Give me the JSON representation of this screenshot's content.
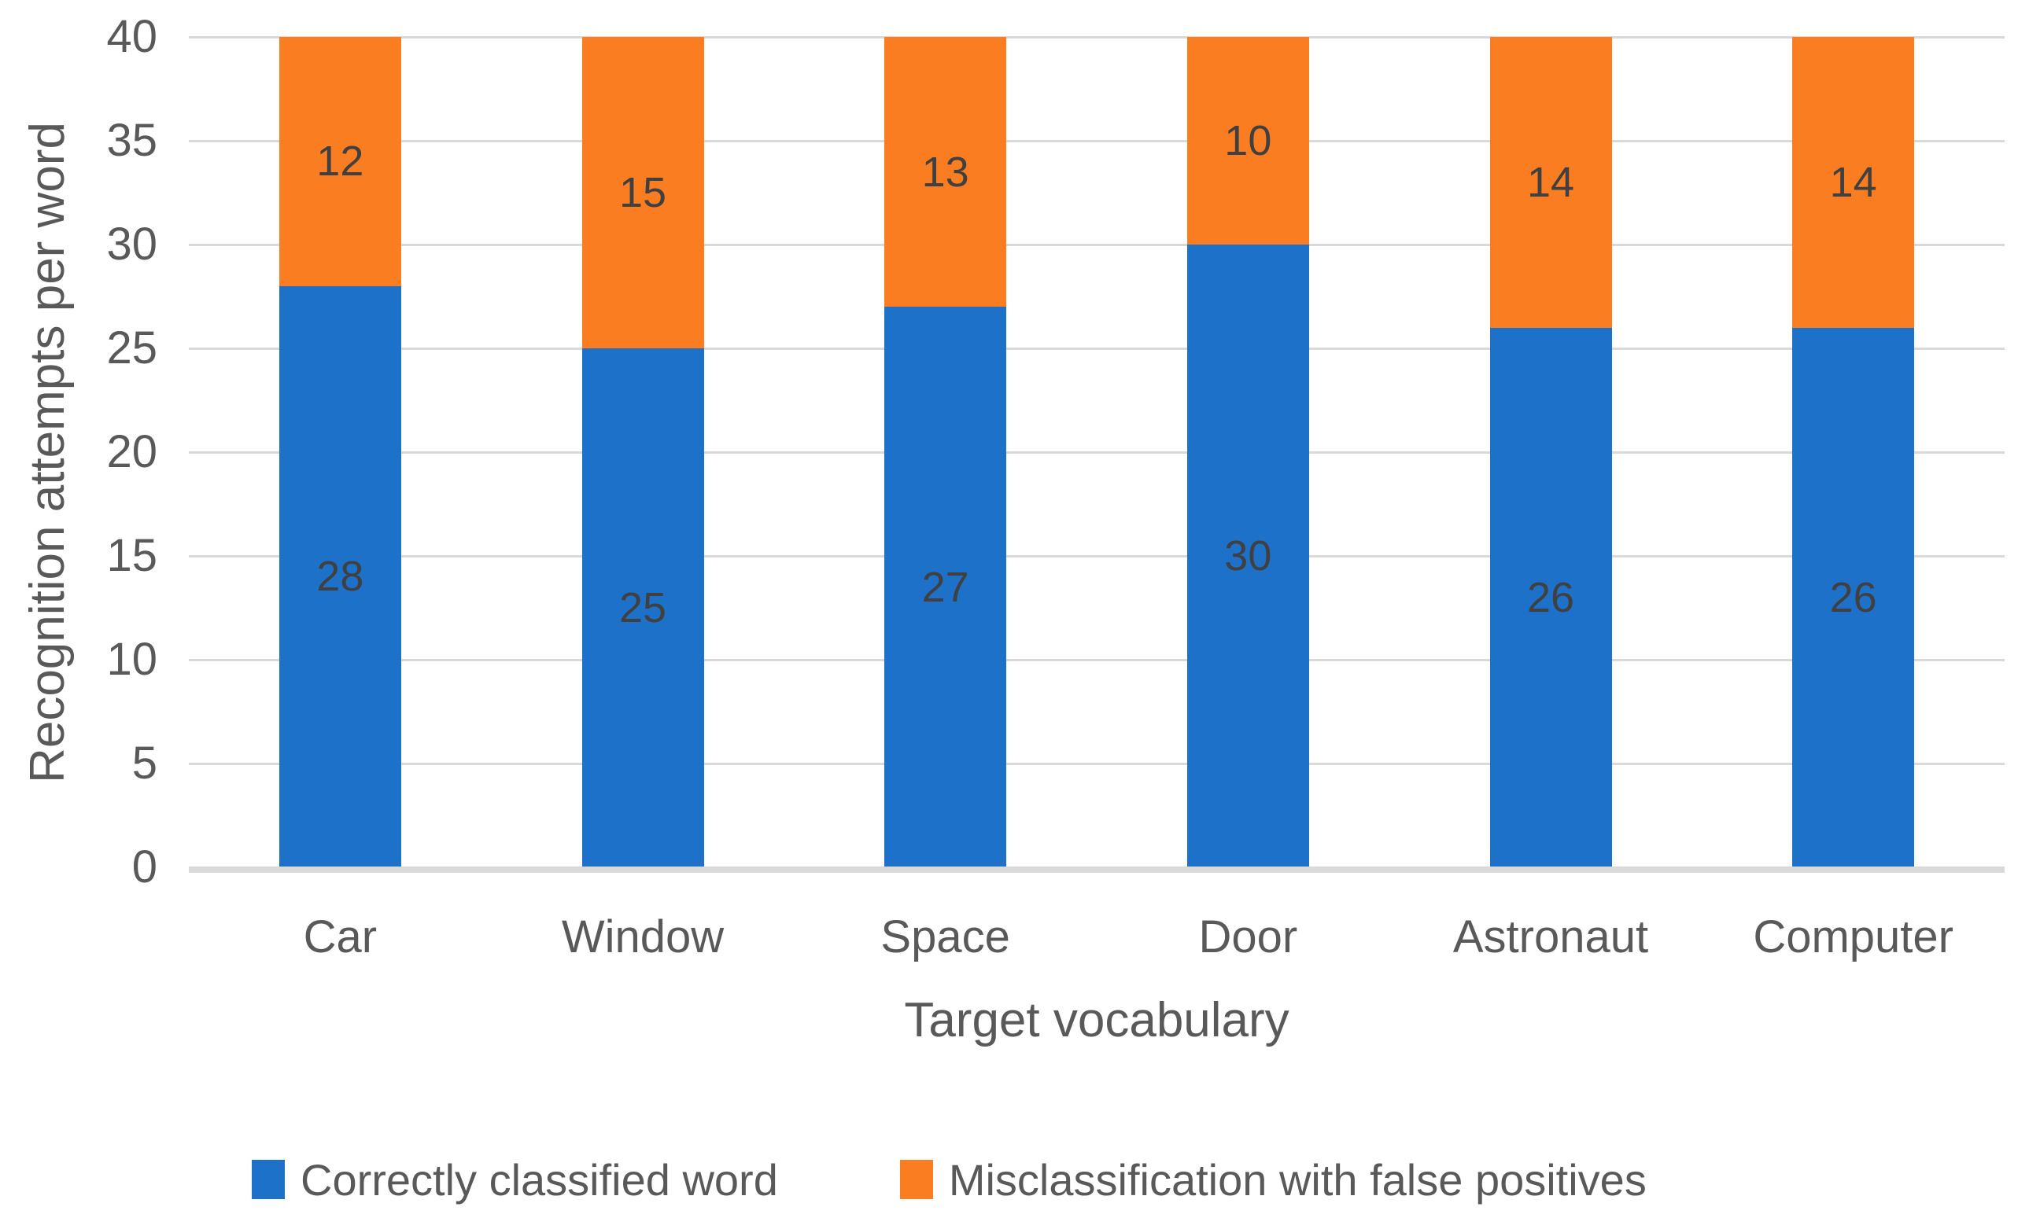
{
  "chart_data": {
    "type": "bar",
    "stacked": true,
    "categories": [
      "Car",
      "Window",
      "Space",
      "Door",
      "Astronaut",
      "Computer"
    ],
    "series": [
      {
        "name": "Correctly classified word",
        "color": "#1e71c8",
        "values": [
          28,
          25,
          27,
          30,
          26,
          26
        ]
      },
      {
        "name": "Misclassification with false positives",
        "color": "#fb7d21",
        "values": [
          12,
          15,
          13,
          10,
          14,
          14
        ]
      }
    ],
    "xlabel": "Target vocabulary",
    "ylabel": "Recognition attempts per word",
    "ylim": [
      0,
      40
    ],
    "yticks": [
      0,
      5,
      10,
      15,
      20,
      25,
      30,
      35,
      40
    ],
    "grid": true,
    "data_labels": true,
    "legend_position": "bottom",
    "colors": {
      "grid": "#d9d9d9",
      "axis_line": "#d9d9d9",
      "tick_text": "#595959",
      "axis_title_text": "#595959",
      "data_label_text": "#404040",
      "legend_text": "#595959",
      "background": "#ffffff"
    }
  }
}
